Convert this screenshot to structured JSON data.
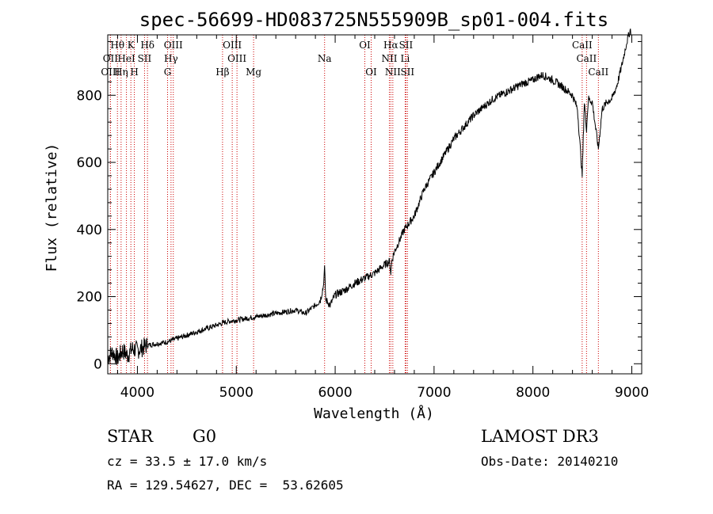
{
  "chart_data": {
    "type": "line",
    "title": "spec-56699-HD083725N555909B_sp01-004.fits",
    "xlabel": "Wavelength (Å)",
    "ylabel": "Flux (relative)",
    "xlim": [
      3700,
      9100
    ],
    "ylim": [
      -30,
      980
    ],
    "x_ticks": [
      4000,
      5000,
      6000,
      7000,
      8000,
      9000
    ],
    "y_ticks": [
      0,
      200,
      400,
      600,
      800
    ],
    "series": [
      {
        "name": "flux",
        "x": [
          3700,
          3750,
          3800,
          3850,
          3900,
          3950,
          4000,
          4100,
          4200,
          4300,
          4400,
          4500,
          4600,
          4700,
          4800,
          4900,
          5000,
          5100,
          5200,
          5300,
          5400,
          5500,
          5600,
          5700,
          5800,
          5850,
          5880,
          5893,
          5905,
          5950,
          6000,
          6100,
          6200,
          6300,
          6400,
          6500,
          6550,
          6563,
          6575,
          6600,
          6700,
          6800,
          6900,
          7000,
          7100,
          7200,
          7300,
          7400,
          7500,
          7600,
          7700,
          7800,
          7900,
          8000,
          8050,
          8100,
          8200,
          8300,
          8400,
          8450,
          8498,
          8520,
          8542,
          8560,
          8600,
          8662,
          8700,
          8750,
          8800,
          8850,
          8900,
          8950,
          8990
        ],
        "y": [
          20,
          35,
          15,
          40,
          25,
          45,
          40,
          55,
          60,
          65,
          75,
          85,
          95,
          105,
          115,
          125,
          130,
          135,
          140,
          145,
          150,
          155,
          160,
          150,
          175,
          190,
          230,
          285,
          190,
          175,
          205,
          220,
          240,
          255,
          270,
          295,
          305,
          270,
          310,
          335,
          400,
          440,
          520,
          570,
          620,
          670,
          705,
          740,
          765,
          790,
          805,
          820,
          835,
          845,
          855,
          860,
          845,
          825,
          800,
          760,
          560,
          780,
          700,
          790,
          780,
          640,
          760,
          780,
          790,
          830,
          890,
          960,
          1000
        ]
      }
    ],
    "spectral_lines": [
      {
        "label": "Hθ",
        "wl": 3798,
        "row": 1
      },
      {
        "label": "OII",
        "wl": 3727,
        "row": 2
      },
      {
        "label": "OIII",
        "wl": 3727,
        "row": 3
      },
      {
        "label": "Hη",
        "wl": 3835,
        "row": 3
      },
      {
        "label": "HeI",
        "wl": 3889,
        "row": 2
      },
      {
        "label": "K",
        "wl": 3934,
        "row": 1
      },
      {
        "label": "SII",
        "wl": 4072,
        "row": 2
      },
      {
        "label": "H",
        "wl": 3969,
        "row": 3
      },
      {
        "label": "Hδ",
        "wl": 4102,
        "row": 1
      },
      {
        "label": "OIII",
        "wl": 4363,
        "row": 1
      },
      {
        "label": "Hγ",
        "wl": 4340,
        "row": 2
      },
      {
        "label": "G",
        "wl": 4305,
        "row": 3
      },
      {
        "label": "Hβ",
        "wl": 4861,
        "row": 3
      },
      {
        "label": "OIII",
        "wl": 4959,
        "row": 1
      },
      {
        "label": "OIII",
        "wl": 5007,
        "row": 2
      },
      {
        "label": "Mg",
        "wl": 5175,
        "row": 3
      },
      {
        "label": "Na",
        "wl": 5893,
        "row": 2
      },
      {
        "label": "OI",
        "wl": 6300,
        "row": 1
      },
      {
        "label": "OI",
        "wl": 6364,
        "row": 3
      },
      {
        "label": "Hα",
        "wl": 6563,
        "row": 1
      },
      {
        "label": "NII",
        "wl": 6548,
        "row": 2
      },
      {
        "label": "NII",
        "wl": 6583,
        "row": 3
      },
      {
        "label": "SII",
        "wl": 6716,
        "row": 1
      },
      {
        "label": "Li",
        "wl": 6708,
        "row": 2
      },
      {
        "label": "SII",
        "wl": 6731,
        "row": 3
      },
      {
        "label": "CaII",
        "wl": 8498,
        "row": 1
      },
      {
        "label": "CaII",
        "wl": 8542,
        "row": 2
      },
      {
        "label": "CaII",
        "wl": 8662,
        "row": 3
      }
    ],
    "colors": {
      "line": "#000000",
      "marker": "#cc0000",
      "axis": "#000000"
    }
  },
  "info": {
    "object_class": "STAR",
    "subclass": "G0",
    "survey": "LAMOST DR3",
    "redshift": "cz = 33.5 ± 17.0 km/s",
    "obs_date": "Obs-Date: 20140210",
    "coords": "RA = 129.54627, DEC =  53.62605"
  }
}
